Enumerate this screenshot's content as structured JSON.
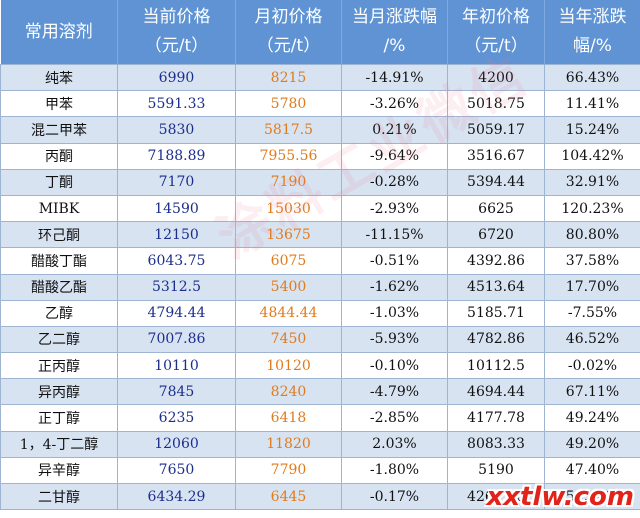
{
  "header": {
    "col_name": "常用溶剂",
    "col_current": [
      "当前价格",
      "（元/t）"
    ],
    "col_month_start": [
      "月初价格",
      "（元/t）"
    ],
    "col_month_change": [
      "当月涨跌幅",
      "/%"
    ],
    "col_year_start": [
      "年初价格",
      "（元/t）"
    ],
    "col_year_change": [
      "当年涨跌",
      "幅/%"
    ]
  },
  "rows": [
    {
      "name": "纯苯",
      "current": "6990",
      "month_start": "8215",
      "month_change": "-14.91%",
      "year_start": "4200",
      "year_change": "66.43%"
    },
    {
      "name": "甲苯",
      "current": "5591.33",
      "month_start": "5780",
      "month_change": "-3.26%",
      "year_start": "5018.75",
      "year_change": "11.41%"
    },
    {
      "name": "混二甲苯",
      "current": "5830",
      "month_start": "5817.5",
      "month_change": "0.21%",
      "year_start": "5059.17",
      "year_change": "15.24%"
    },
    {
      "name": "丙酮",
      "current": "7188.89",
      "month_start": "7955.56",
      "month_change": "-9.64%",
      "year_start": "3516.67",
      "year_change": "104.42%"
    },
    {
      "name": "丁酮",
      "current": "7170",
      "month_start": "7190",
      "month_change": "-0.28%",
      "year_start": "5394.44",
      "year_change": "32.91%"
    },
    {
      "name": "MIBK",
      "current": "14590",
      "month_start": "15030",
      "month_change": "-2.93%",
      "year_start": "6625",
      "year_change": "120.23%"
    },
    {
      "name": "环己酮",
      "current": "12150",
      "month_start": "13675",
      "month_change": "-11.15%",
      "year_start": "6720",
      "year_change": "80.80%"
    },
    {
      "name": "醋酸丁酯",
      "current": "6043.75",
      "month_start": "6075",
      "month_change": "-0.51%",
      "year_start": "4392.86",
      "year_change": "37.58%"
    },
    {
      "name": "醋酸乙酯",
      "current": "5312.5",
      "month_start": "5400",
      "month_change": "-1.62%",
      "year_start": "4513.64",
      "year_change": "17.70%"
    },
    {
      "name": "乙醇",
      "current": "4794.44",
      "month_start": "4844.44",
      "month_change": "-1.03%",
      "year_start": "5185.71",
      "year_change": "-7.55%"
    },
    {
      "name": "乙二醇",
      "current": "7007.86",
      "month_start": "7450",
      "month_change": "-5.93%",
      "year_start": "4782.86",
      "year_change": "46.52%"
    },
    {
      "name": "正丙醇",
      "current": "10110",
      "month_start": "10120",
      "month_change": "-0.10%",
      "year_start": "10112.5",
      "year_change": "-0.02%"
    },
    {
      "name": "异丙醇",
      "current": "7845",
      "month_start": "8240",
      "month_change": "-4.79%",
      "year_start": "4694.44",
      "year_change": "67.11%"
    },
    {
      "name": "正丁醇",
      "current": "6235",
      "month_start": "6418",
      "month_change": "-2.85%",
      "year_start": "4177.78",
      "year_change": "49.24%"
    },
    {
      "name": "1，4-丁二醇",
      "current": "12060",
      "month_start": "11820",
      "month_change": "2.03%",
      "year_start": "8083.33",
      "year_change": "49.20%"
    },
    {
      "name": "异辛醇",
      "current": "7650",
      "month_start": "7790",
      "month_change": "-1.80%",
      "year_start": "5190",
      "year_change": "47.40%"
    },
    {
      "name": "二甘醇",
      "current": "6434.29",
      "month_start": "6445",
      "month_change": "-0.17%",
      "year_start": "4262.86",
      "year_change": "50.94%"
    }
  ],
  "watermark": "涂料工业微信",
  "site_logo": "xxtlw.com",
  "colors": {
    "header_bg": "#5f93d4",
    "row_alt_bg": "#d8e3f2",
    "current_price_text": "#1c2e8c",
    "month_start_text": "#e07b1d"
  }
}
